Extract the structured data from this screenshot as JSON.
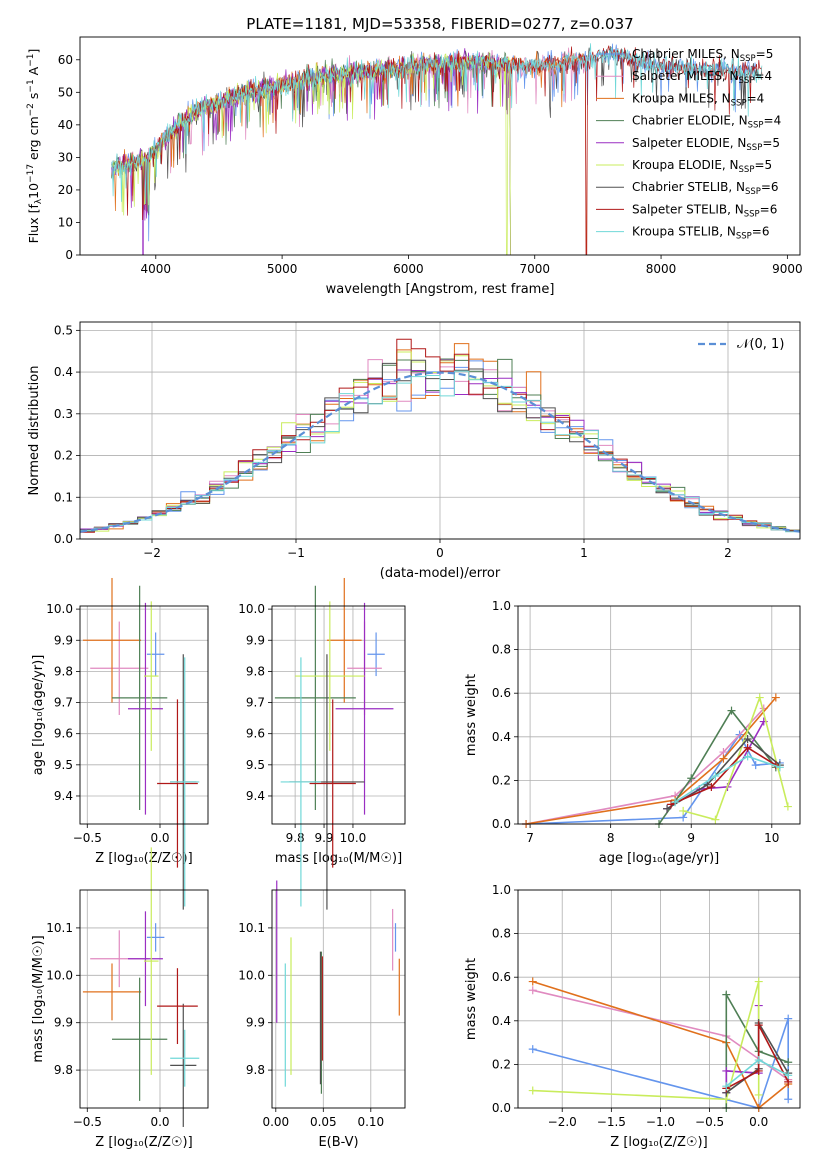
{
  "colors": {
    "chabrier_miles": "#6495ed",
    "salpeter_miles": "#e08ac0",
    "kroupa_miles": "#e0701c",
    "chabrier_elodie": "#4f7f55",
    "salpeter_elodie": "#9a2ec2",
    "kroupa_elodie": "#c9ec5c",
    "chabrier_stelib": "#505050",
    "salpeter_stelib": "#b01818",
    "kroupa_stelib": "#70d8d8",
    "normal": "#5b8fd6",
    "grid": "#b0b0b0"
  },
  "chart_data": [
    {
      "id": "spectrum",
      "type": "line",
      "title": "PLATE=1181, MJD=53358, FIBERID=0277, z=0.037",
      "xlabel": "wavelength [Angstrom, rest frame]",
      "ylabel_parts": [
        "Flux [f",
        "λ",
        "10",
        "−17",
        " erg cm",
        "−2",
        " s",
        "−1",
        " A",
        "−1",
        "]"
      ],
      "xlim": [
        3400,
        9100
      ],
      "ylim": [
        0,
        67
      ],
      "xticks": [
        "4000",
        "5000",
        "6000",
        "7000",
        "8000",
        "9000"
      ],
      "xtick_values": [
        4000,
        5000,
        6000,
        7000,
        8000,
        9000
      ],
      "yticks": [
        "0",
        "10",
        "20",
        "30",
        "40",
        "50",
        "60"
      ],
      "ytick_values": [
        0,
        10,
        20,
        30,
        40,
        50,
        60
      ],
      "grid": false,
      "legend_position": "right",
      "continuum": {
        "x": [
          3650,
          3800,
          3950,
          4100,
          4300,
          4500,
          4700,
          5000,
          5300,
          5600,
          6000,
          6300,
          6600,
          7000,
          7400,
          7600,
          7800,
          8000,
          8300,
          8600,
          8900
        ],
        "y": [
          27,
          28,
          30,
          37,
          44,
          47,
          50,
          52,
          55,
          56,
          58,
          59,
          59,
          58,
          60,
          62,
          60,
          58,
          57,
          57,
          55
        ]
      },
      "features": [
        {
          "series": "salpeter_elodie",
          "wavelength": 3900,
          "flux": 0
        },
        {
          "series": "kroupa_elodie",
          "wavelength": 6780,
          "flux": 0
        },
        {
          "series": "salpeter_stelib",
          "wavelength": 7410,
          "flux": 0
        }
      ],
      "series": [
        {
          "key": "chabrier_miles",
          "name": "Chabrier MILES, N",
          "sub": "SSP",
          "n": "=5",
          "end": 8750
        },
        {
          "key": "salpeter_miles",
          "name": "Salpeter MILES, N",
          "sub": "SSP",
          "n": "=4",
          "end": 7400
        },
        {
          "key": "kroupa_miles",
          "name": "Kroupa MILES, N",
          "sub": "SSP",
          "n": "=4",
          "end": 7400
        },
        {
          "key": "chabrier_elodie",
          "name": "Chabrier ELODIE, N",
          "sub": "SSP",
          "n": "=4",
          "end": 6800
        },
        {
          "key": "salpeter_elodie",
          "name": "Salpeter ELODIE, N",
          "sub": "SSP",
          "n": "=5",
          "end": 6800
        },
        {
          "key": "kroupa_elodie",
          "name": "Kroupa ELODIE, N",
          "sub": "SSP",
          "n": "=5",
          "end": 6800
        },
        {
          "key": "chabrier_stelib",
          "name": "Chabrier STELIB, N",
          "sub": "SSP",
          "n": "=6",
          "end": 8800
        },
        {
          "key": "salpeter_stelib",
          "name": "Salpeter STELIB, N",
          "sub": "SSP",
          "n": "=6",
          "end": 8800
        },
        {
          "key": "kroupa_stelib",
          "name": "Kroupa STELIB, N",
          "sub": "SSP",
          "n": "=6",
          "end": 8800
        }
      ]
    },
    {
      "id": "residuals",
      "type": "histogram",
      "xlabel": "(data-model)/error",
      "ylabel": "Normed distribution",
      "xlim": [
        -2.5,
        2.5
      ],
      "ylim": [
        0,
        0.52
      ],
      "xticks": [
        "−2",
        "−1",
        "0",
        "1",
        "2"
      ],
      "xtick_values": [
        -2,
        -1,
        0,
        1,
        2
      ],
      "yticks": [
        "0.0",
        "0.1",
        "0.2",
        "0.3",
        "0.4",
        "0.5"
      ],
      "ytick_values": [
        0,
        0.1,
        0.2,
        0.3,
        0.4,
        0.5
      ],
      "grid": true,
      "legend_position": "top-right",
      "normal_label": "𝒩(0, 1)",
      "bin_width": 0.1
    },
    {
      "id": "age_vs_z",
      "type": "errorbar",
      "xlabel": "Z [log₁₀(Z/Z☉)]",
      "ylabel": "age  [log₁₀(age/yr)]",
      "xlim": [
        -0.55,
        0.33
      ],
      "ylim": [
        9.31,
        10.01
      ],
      "xticks": [
        "−0.5",
        "0.0"
      ],
      "xtick_values": [
        -0.5,
        0.0
      ],
      "yticks": [
        "9.4",
        "9.5",
        "9.6",
        "9.7",
        "9.8",
        "9.9",
        "10.0"
      ],
      "ytick_values": [
        9.4,
        9.5,
        9.6,
        9.7,
        9.8,
        9.9,
        10.0
      ],
      "grid": true,
      "points": [
        {
          "series": "chabrier_miles",
          "x": -0.03,
          "xerr": 0.06,
          "y": 9.855,
          "yerr": 0.07
        },
        {
          "series": "salpeter_miles",
          "x": -0.28,
          "xerr": 0.2,
          "y": 9.81,
          "yerr": 0.15
        },
        {
          "series": "kroupa_miles",
          "x": -0.33,
          "xerr": 0.2,
          "y": 9.9,
          "yerr": 0.2
        },
        {
          "series": "chabrier_elodie",
          "x": -0.14,
          "xerr": 0.19,
          "y": 9.715,
          "yerr": 0.36
        },
        {
          "series": "salpeter_elodie",
          "x": -0.1,
          "xerr": 0.12,
          "y": 9.68,
          "yerr": 0.34
        },
        {
          "series": "kroupa_elodie",
          "x": -0.06,
          "xerr": 0.05,
          "y": 9.785,
          "yerr": 0.24
        },
        {
          "series": "chabrier_stelib",
          "x": 0.16,
          "xerr": 0.09,
          "y": 9.445,
          "yerr": 0.41
        },
        {
          "series": "salpeter_stelib",
          "x": 0.12,
          "xerr": 0.14,
          "y": 9.44,
          "yerr": 0.27
        },
        {
          "series": "kroupa_stelib",
          "x": 0.17,
          "xerr": 0.1,
          "y": 9.445,
          "yerr": 0.4
        }
      ]
    },
    {
      "id": "age_vs_mass",
      "type": "errorbar",
      "xlabel": "mass [log₁₀(M/M☉)]",
      "xlim": [
        9.72,
        10.18
      ],
      "ylim": [
        9.31,
        10.01
      ],
      "xticks": [
        "9.8",
        "9.9",
        "10.0"
      ],
      "xtick_values": [
        9.8,
        9.9,
        10.0
      ],
      "yticks": [
        "9.4",
        "9.5",
        "9.6",
        "9.7",
        "9.8",
        "9.9",
        "10.0"
      ],
      "ytick_values": [
        9.4,
        9.5,
        9.6,
        9.7,
        9.8,
        9.9,
        10.0
      ],
      "grid": true,
      "points": [
        {
          "series": "chabrier_miles",
          "x": 10.08,
          "xerr": 0.03,
          "y": 9.855,
          "yerr": 0.07
        },
        {
          "series": "salpeter_miles",
          "x": 10.04,
          "xerr": 0.06,
          "y": 9.81,
          "yerr": 0.15
        },
        {
          "series": "kroupa_miles",
          "x": 9.97,
          "xerr": 0.06,
          "y": 9.9,
          "yerr": 0.2
        },
        {
          "series": "chabrier_elodie",
          "x": 9.87,
          "xerr": 0.14,
          "y": 9.715,
          "yerr": 0.36
        },
        {
          "series": "salpeter_elodie",
          "x": 10.04,
          "xerr": 0.1,
          "y": 9.68,
          "yerr": 0.34
        },
        {
          "series": "kroupa_elodie",
          "x": 9.92,
          "xerr": 0.12,
          "y": 9.785,
          "yerr": 0.24
        },
        {
          "series": "chabrier_stelib",
          "x": 9.91,
          "xerr": 0.13,
          "y": 9.445,
          "yerr": 0.41
        },
        {
          "series": "salpeter_stelib",
          "x": 9.93,
          "xerr": 0.08,
          "y": 9.44,
          "yerr": 0.27
        },
        {
          "series": "kroupa_stelib",
          "x": 9.82,
          "xerr": 0.07,
          "y": 9.445,
          "yerr": 0.4
        }
      ]
    },
    {
      "id": "weight_vs_age",
      "type": "line",
      "xlabel": "age  [log₁₀(age/yr)]",
      "ylabel": "mass weight",
      "xlim": [
        6.85,
        10.35
      ],
      "ylim": [
        0,
        1.0
      ],
      "xticks": [
        "7",
        "8",
        "9",
        "10"
      ],
      "xtick_values": [
        7,
        8,
        9,
        10
      ],
      "yticks": [
        "0.0",
        "0.2",
        "0.4",
        "0.6",
        "0.8",
        "1.0"
      ],
      "ytick_values": [
        0,
        0.2,
        0.4,
        0.6,
        0.8,
        1.0
      ],
      "grid": true,
      "series": [
        {
          "key": "chabrier_miles",
          "x": [
            6.95,
            8.9,
            9.6,
            9.8,
            10.1
          ],
          "y": [
            0.0,
            0.03,
            0.41,
            0.27,
            0.28
          ]
        },
        {
          "key": "salpeter_miles",
          "x": [
            6.95,
            8.8,
            9.4,
            9.9
          ],
          "y": [
            0.0,
            0.13,
            0.33,
            0.53
          ]
        },
        {
          "key": "kroupa_miles",
          "x": [
            6.95,
            8.8,
            9.4,
            10.05
          ],
          "y": [
            0.0,
            0.11,
            0.3,
            0.58
          ]
        },
        {
          "key": "chabrier_elodie",
          "x": [
            8.6,
            9.0,
            9.5,
            10.05
          ],
          "y": [
            0.0,
            0.21,
            0.52,
            0.26
          ]
        },
        {
          "key": "salpeter_elodie",
          "x": [
            8.7,
            9.1,
            9.45,
            9.9
          ],
          "y": [
            0.07,
            0.16,
            0.17,
            0.47
          ]
        },
        {
          "key": "kroupa_elodie",
          "x": [
            8.9,
            9.3,
            9.85,
            10.2
          ],
          "y": [
            0.06,
            0.02,
            0.58,
            0.08
          ]
        },
        {
          "key": "chabrier_stelib",
          "x": [
            8.7,
            9.2,
            9.7,
            10.1
          ],
          "y": [
            0.07,
            0.18,
            0.39,
            0.27
          ]
        },
        {
          "key": "salpeter_stelib",
          "x": [
            8.75,
            9.25,
            9.7,
            10.05
          ],
          "y": [
            0.09,
            0.17,
            0.35,
            0.27
          ]
        },
        {
          "key": "kroupa_stelib",
          "x": [
            8.8,
            9.3,
            9.7,
            10.1
          ],
          "y": [
            0.1,
            0.22,
            0.31,
            0.26
          ]
        }
      ]
    },
    {
      "id": "mass_vs_z",
      "type": "errorbar",
      "xlabel": "Z [log₁₀(Z/Z☉)]",
      "ylabel": "mass [log₁₀(M/M☉)]",
      "xlim": [
        -0.55,
        0.33
      ],
      "ylim": [
        9.72,
        10.18
      ],
      "xticks": [
        "−0.5",
        "0.0"
      ],
      "xtick_values": [
        -0.5,
        0.0
      ],
      "yticks": [
        "9.8",
        "9.9",
        "10.0",
        "10.1"
      ],
      "ytick_values": [
        9.8,
        9.9,
        10.0,
        10.1
      ],
      "grid": true,
      "points": [
        {
          "series": "chabrier_miles",
          "x": -0.03,
          "xerr": 0.06,
          "y": 10.08,
          "yerr": 0.03
        },
        {
          "series": "salpeter_miles",
          "x": -0.28,
          "xerr": 0.2,
          "y": 10.035,
          "yerr": 0.06
        },
        {
          "series": "kroupa_miles",
          "x": -0.33,
          "xerr": 0.2,
          "y": 9.965,
          "yerr": 0.06
        },
        {
          "series": "chabrier_elodie",
          "x": -0.14,
          "xerr": 0.19,
          "y": 9.865,
          "yerr": 0.13
        },
        {
          "series": "salpeter_elodie",
          "x": -0.1,
          "xerr": 0.12,
          "y": 10.035,
          "yerr": 0.1
        },
        {
          "series": "kroupa_elodie",
          "x": -0.06,
          "xerr": 0.05,
          "y": 10.03,
          "yerr": 0.24
        },
        {
          "series": "chabrier_stelib",
          "x": 0.16,
          "xerr": 0.09,
          "y": 9.81,
          "yerr": 0.13
        },
        {
          "series": "salpeter_stelib",
          "x": 0.12,
          "xerr": 0.14,
          "y": 9.935,
          "yerr": 0.08
        },
        {
          "series": "kroupa_stelib",
          "x": 0.17,
          "xerr": 0.1,
          "y": 9.825,
          "yerr": 0.06
        }
      ]
    },
    {
      "id": "mass_vs_ebv",
      "type": "errorbar",
      "xlabel": "E(B-V)",
      "xlim": [
        -0.004,
        0.136
      ],
      "ylim": [
        9.72,
        10.18
      ],
      "xticks": [
        "0.00",
        "0.05",
        "0.10"
      ],
      "xtick_values": [
        0,
        0.05,
        0.1
      ],
      "yticks": [
        "9.8",
        "9.9",
        "10.0",
        "10.1"
      ],
      "ytick_values": [
        9.8,
        9.9,
        10.0,
        10.1
      ],
      "grid": true,
      "points": [
        {
          "series": "chabrier_miles",
          "x": 0.126,
          "xerr": 0,
          "y": 10.08,
          "yerr": 0.03
        },
        {
          "series": "salpeter_miles",
          "x": 0.123,
          "xerr": 0,
          "y": 10.075,
          "yerr": 0.065
        },
        {
          "series": "kroupa_miles",
          "x": 0.13,
          "xerr": 0,
          "y": 9.975,
          "yerr": 0.06
        },
        {
          "series": "chabrier_elodie",
          "x": 0.048,
          "xerr": 0,
          "y": 9.9,
          "yerr": 0.15
        },
        {
          "series": "salpeter_elodie",
          "x": 0.001,
          "xerr": 0,
          "y": 10.05,
          "yerr": 0.15
        },
        {
          "series": "kroupa_elodie",
          "x": 0.016,
          "xerr": 0,
          "y": 9.935,
          "yerr": 0.145
        },
        {
          "series": "chabrier_stelib",
          "x": 0.047,
          "xerr": 0,
          "y": 9.91,
          "yerr": 0.14
        },
        {
          "series": "salpeter_stelib",
          "x": 0.049,
          "xerr": 0,
          "y": 9.93,
          "yerr": 0.11
        },
        {
          "series": "kroupa_stelib",
          "x": 0.01,
          "xerr": 0,
          "y": 9.895,
          "yerr": 0.13
        }
      ]
    },
    {
      "id": "weight_vs_z",
      "type": "line",
      "xlabel": "Z [log₁₀(Z/Z☉)]",
      "ylabel": "mass weight",
      "xlim": [
        -2.45,
        0.42
      ],
      "ylim": [
        0,
        1.0
      ],
      "xticks": [
        "−2.0",
        "−1.5",
        "−1.0",
        "−0.5",
        "0.0"
      ],
      "xtick_values": [
        -2.0,
        -1.5,
        -1.0,
        -0.5,
        0.0
      ],
      "yticks": [
        "0.0",
        "0.2",
        "0.4",
        "0.6",
        "0.8",
        "1.0"
      ],
      "ytick_values": [
        0,
        0.2,
        0.4,
        0.6,
        0.8,
        1.0
      ],
      "grid": true,
      "series": [
        {
          "key": "chabrier_miles",
          "x": [
            -2.3,
            0.0,
            0.3,
            0.3
          ],
          "y": [
            0.27,
            0.0,
            0.41,
            0.04
          ]
        },
        {
          "key": "salpeter_miles",
          "x": [
            -2.3,
            -0.33,
            0.3
          ],
          "y": [
            0.54,
            0.33,
            0.13
          ]
        },
        {
          "key": "kroupa_miles",
          "x": [
            -2.3,
            -0.33,
            0.0,
            0.3
          ],
          "y": [
            0.58,
            0.3,
            0.0,
            0.11
          ]
        },
        {
          "key": "chabrier_elodie",
          "x": [
            -0.33,
            -0.33,
            0.0,
            0.3
          ],
          "y": [
            0.0,
            0.52,
            0.26,
            0.21
          ]
        },
        {
          "key": "salpeter_elodie",
          "x": [
            -0.33,
            -0.33,
            0.0,
            0.0
          ],
          "y": [
            0.07,
            0.17,
            0.16,
            0.47
          ]
        },
        {
          "key": "kroupa_elodie",
          "x": [
            -2.3,
            -0.33,
            0.0,
            0.0
          ],
          "y": [
            0.08,
            0.04,
            0.58,
            0.06
          ]
        },
        {
          "key": "chabrier_stelib",
          "x": [
            -0.33,
            0.0,
            0.0,
            0.3
          ],
          "y": [
            0.07,
            0.18,
            0.39,
            0.16
          ]
        },
        {
          "key": "salpeter_stelib",
          "x": [
            -0.33,
            0.0,
            0.0,
            0.3
          ],
          "y": [
            0.09,
            0.17,
            0.38,
            0.12
          ]
        },
        {
          "key": "kroupa_stelib",
          "x": [
            -0.33,
            0.0,
            0.3
          ],
          "y": [
            0.1,
            0.22,
            0.15
          ]
        }
      ]
    }
  ]
}
